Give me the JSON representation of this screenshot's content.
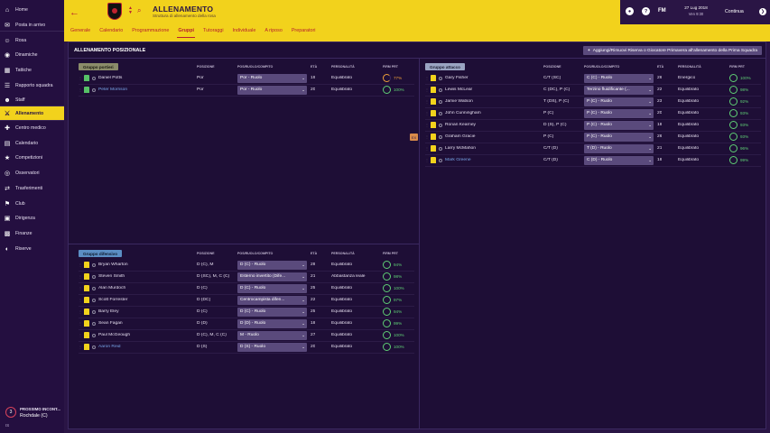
{
  "sidebar": {
    "items": [
      {
        "label": "Home",
        "icon": "house-icon"
      },
      {
        "label": "Posta in arrivo",
        "icon": "mail-icon"
      },
      {
        "label": "Rosa",
        "icon": "people-icon"
      },
      {
        "label": "Dinamiche",
        "icon": "dynamics-icon"
      },
      {
        "label": "Tattiche",
        "icon": "tactics-icon"
      },
      {
        "label": "Rapporto squadra",
        "icon": "report-icon"
      },
      {
        "label": "Staff",
        "icon": "staff-icon"
      },
      {
        "label": "Allenamento",
        "icon": "training-icon"
      },
      {
        "label": "Centro medico",
        "icon": "medical-icon"
      },
      {
        "label": "Calendario",
        "icon": "calendar-icon"
      },
      {
        "label": "Competizioni",
        "icon": "trophy-icon"
      },
      {
        "label": "Osservatori",
        "icon": "scouting-icon"
      },
      {
        "label": "Trasferimenti",
        "icon": "transfers-icon"
      },
      {
        "label": "Club",
        "icon": "club-icon"
      },
      {
        "label": "Dirigenza",
        "icon": "board-icon"
      },
      {
        "label": "Finanze",
        "icon": "finances-icon"
      },
      {
        "label": "Riserve",
        "icon": "reserves-icon"
      }
    ],
    "next_match": {
      "label": "PROSSIMO INCONT...",
      "team": "Rochdale (C)",
      "countdown": "3",
      "extra": "IS"
    }
  },
  "header": {
    "title": "ALLENAMENTO",
    "subtitle": "Struttura di allenamento della rosa",
    "tabs": [
      "Generale",
      "Calendario",
      "Programmazione",
      "Gruppi",
      "Tutoraggi",
      "Individuale",
      "A riposo",
      "Preparatori"
    ],
    "active_tab": "Gruppi",
    "date": "27 Lug 2018",
    "time": "Ven 9:30",
    "continue_label": "Continua",
    "fm_label": "FM"
  },
  "panel": {
    "title": "ALLENAMENTO POSIZIONALE",
    "add_button": "Aggiungi/Rimuovi Riserva o Giocatore Primavera all'allenamento della Prima Squadra"
  },
  "columns": {
    "position": "POSIZIONE",
    "role": "POS/RUOLO/COMPITO",
    "age": "ETÀ",
    "personality": "PERSONALITÀ",
    "fitness": "FIRM PRT"
  },
  "groups": {
    "goalkeepers": {
      "label": "Gruppo portieri",
      "rows": [
        {
          "name": "Daniel Potts",
          "position": "Por",
          "role": "Por - Ruolo",
          "age": "19",
          "personality": "Equilibrato",
          "fitness": "77%",
          "blue": false
        },
        {
          "name": "Peter Morrison",
          "position": "Por",
          "role": "Por - Ruolo",
          "age": "20",
          "personality": "Equilibrato",
          "fitness": "100%",
          "blue": true
        }
      ]
    },
    "defense": {
      "label": "Gruppo difensivo",
      "rows": [
        {
          "name": "Bryan Wharton",
          "position": "D (C), M",
          "role": "D (C) - Ruolo",
          "age": "28",
          "personality": "Equilibrato",
          "fitness": "94%",
          "blue": false
        },
        {
          "name": "Steven Smith",
          "position": "D (SC), M, C (C)",
          "role": "Esterno invertito (Dife...",
          "age": "21",
          "personality": "Abbastanza leale",
          "fitness": "98%",
          "blue": false
        },
        {
          "name": "Alan Murdoch",
          "position": "D (C)",
          "role": "D (C) - Ruolo",
          "age": "25",
          "personality": "Equilibrato",
          "fitness": "100%",
          "blue": false
        },
        {
          "name": "Scott Forrester",
          "position": "D (DC)",
          "role": "Centrocampista difen...",
          "age": "22",
          "personality": "Equilibrato",
          "fitness": "97%",
          "blue": false
        },
        {
          "name": "Barry Eley",
          "position": "D (C)",
          "role": "D (C) - Ruolo",
          "age": "25",
          "personality": "Equilibrato",
          "fitness": "94%",
          "blue": false
        },
        {
          "name": "Sean Fagan",
          "position": "D (D)",
          "role": "D (D) - Ruolo",
          "age": "18",
          "personality": "Equilibrato",
          "fitness": "99%",
          "blue": false
        },
        {
          "name": "Paul McGeough",
          "position": "D (C), M, C (C)",
          "role": "M - Ruolo",
          "age": "27",
          "personality": "Equilibrato",
          "fitness": "100%",
          "blue": false
        },
        {
          "name": "Aaron Reid",
          "position": "D (S)",
          "role": "D (S) - Ruolo",
          "age": "20",
          "personality": "Equilibrato",
          "fitness": "100%",
          "blue": true
        }
      ]
    },
    "attack": {
      "label": "Gruppo attacco",
      "rows": [
        {
          "name": "Gary Fisher",
          "position": "C/T (SC)",
          "role": "C (C) - Ruolo",
          "age": "26",
          "personality": "Energico",
          "fitness": "100%",
          "blue": false,
          "tag": ""
        },
        {
          "name": "Lewis McLear",
          "position": "C (DC), P (C)",
          "role": "Terzino fluidificante (...",
          "age": "22",
          "personality": "Equilibrato",
          "fitness": "98%",
          "blue": false,
          "tag": ""
        },
        {
          "name": "Jamie Watson",
          "position": "T (DS), P (C)",
          "role": "P (C) - Ruolo",
          "age": "23",
          "personality": "Equilibrato",
          "fitness": "92%",
          "blue": false,
          "tag": ""
        },
        {
          "name": "John Cunningham",
          "position": "P (C)",
          "role": "P (C) - Ruolo",
          "age": "20",
          "personality": "Equilibrato",
          "fitness": "93%",
          "blue": false,
          "tag": ""
        },
        {
          "name": "Ronan Kearney",
          "position": "D (S), P (C)",
          "role": "P (C) - Ruolo",
          "age": "18",
          "personality": "Equilibrato",
          "fitness": "93%",
          "blue": false,
          "tag": ""
        },
        {
          "name": "Graham Gracie",
          "position": "P (C)",
          "role": "P (C) - Ruolo",
          "age": "26",
          "personality": "Equilibrato",
          "fitness": "93%",
          "blue": false,
          "tag": "EX"
        },
        {
          "name": "Larry McMahon",
          "position": "C/T (D)",
          "role": "T (D) - Ruolo",
          "age": "21",
          "personality": "Equilibrato",
          "fitness": "96%",
          "blue": false,
          "tag": ""
        },
        {
          "name": "Mark Greene",
          "position": "C/T (D)",
          "role": "C (D) - Ruolo",
          "age": "18",
          "personality": "Equilibrato",
          "fitness": "99%",
          "blue": true,
          "tag": ""
        }
      ]
    }
  },
  "colors": {
    "brand_yellow": "#f2d21c",
    "background": "#2a1545",
    "accent_red": "#b7202e",
    "fitness_green": "#5fcf75"
  }
}
